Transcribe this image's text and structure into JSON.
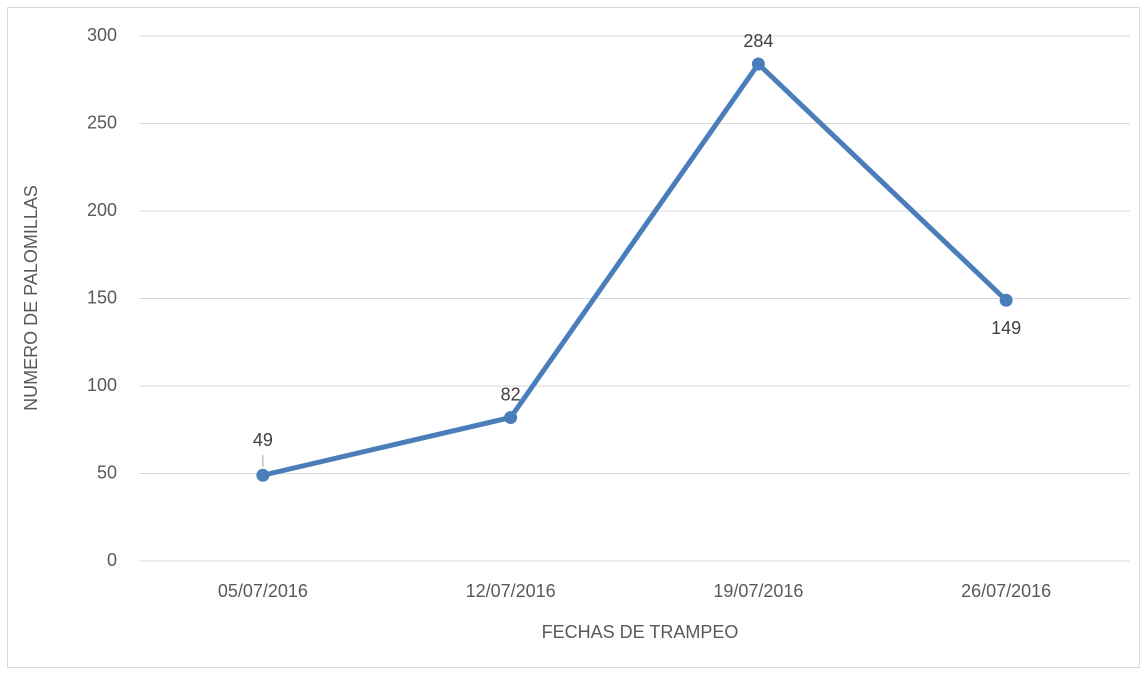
{
  "chart_data": {
    "type": "line",
    "x_label": "FECHAS DE TRAMPEO",
    "y_label": "NUMERO DE PALOMILLAS",
    "categories": [
      "05/07/2016",
      "12/07/2016",
      "19/07/2016",
      "26/07/2016"
    ],
    "series": [
      {
        "color": "#4a7ebb",
        "values": [
          49,
          82,
          284,
          149
        ]
      }
    ],
    "ylim": [
      0,
      300
    ],
    "yticks": [
      0,
      50,
      100,
      150,
      200,
      250,
      300
    ],
    "grid": true
  }
}
